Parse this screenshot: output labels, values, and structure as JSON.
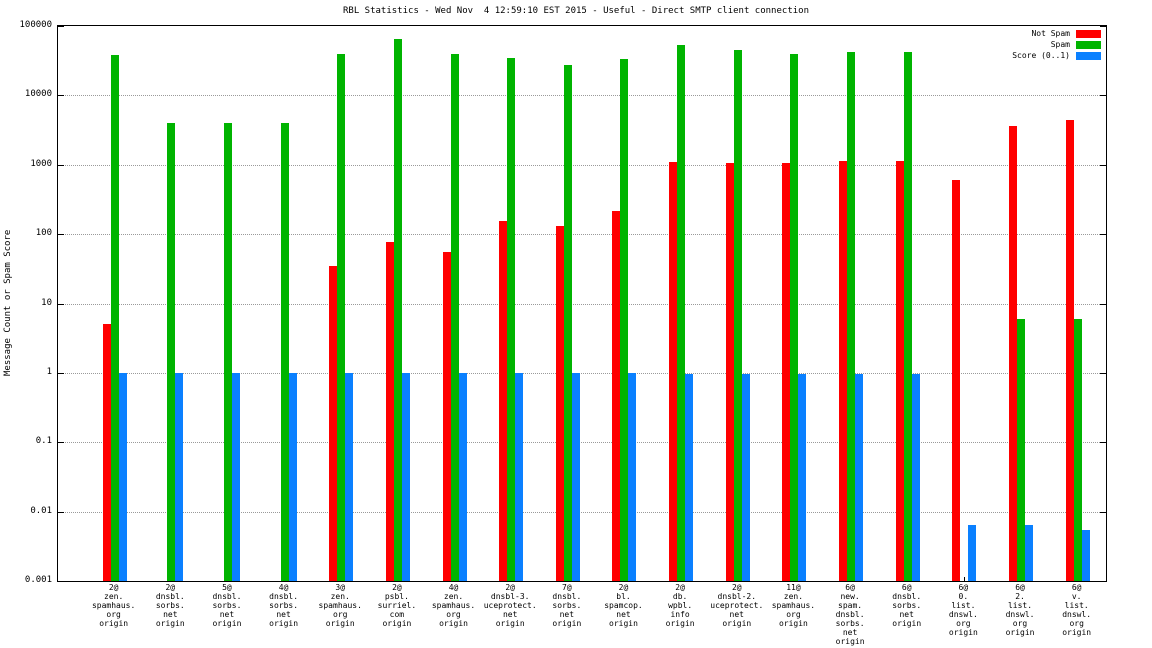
{
  "title": "RBL Statistics - Wed Nov  4 12:59:10 EST 2015 - Useful - Direct SMTP client connection",
  "chart_data": {
    "type": "bar",
    "yscale": "log",
    "grid": true,
    "legend_position": "top-right",
    "ylabel": "Message Count or Spam Score",
    "ylim": [
      0.001,
      100000
    ],
    "yticks": [
      100000,
      10000,
      1000,
      100,
      10,
      1,
      0.1,
      0.01,
      0.001
    ],
    "ytick_labels": [
      "100000",
      "10000",
      "1000",
      "100",
      "10",
      "1",
      "0.1",
      "0.01",
      "0.001"
    ],
    "categories": [
      "2@\nzen.\nspamhaus.\norg\norigin",
      "2@\ndnsbl.\nsorbs.\nnet\norigin",
      "5@\ndnsbl.\nsorbs.\nnet\norigin",
      "4@\ndnsbl.\nsorbs.\nnet\norigin",
      "3@\nzen.\nspamhaus.\norg\norigin",
      "2@\npsbl.\nsurriel.\ncom\norigin",
      "4@\nzen.\nspamhaus.\norg\norigin",
      "2@\ndnsbl-3.\nuceprotect.\nnet\norigin",
      "7@\ndnsbl.\nsorbs.\nnet\norigin",
      "2@\nbl.\nspamcop.\nnet\norigin",
      "2@\ndb.\nwpbl.\ninfo\norigin",
      "2@\ndnsbl-2.\nuceprotect.\nnet\norigin",
      "11@\nzen.\nspamhaus.\norg\norigin",
      "6@\nnew.\nspam.\ndnsbl.\nsorbs.\nnet\norigin",
      "6@\ndnsbl.\nsorbs.\nnet\norigin",
      "6@\n0.\nlist.\ndnswl.\norg\norigin",
      "6@\n2.\nlist.\ndnswl.\norg\norigin",
      "6@\nv.\nlist.\ndnswl.\norg\norigin"
    ],
    "series": [
      {
        "name": "Not Spam",
        "slug": "not-spam",
        "color": "#ff0000",
        "values": [
          5,
          null,
          null,
          null,
          35,
          78,
          55,
          155,
          130,
          215,
          1100,
          1050,
          1050,
          1150,
          1150,
          600,
          3600,
          4400
        ]
      },
      {
        "name": "Spam",
        "slug": "spam",
        "color": "#00b400",
        "values": [
          38000,
          4000,
          4000,
          4000,
          40000,
          64000,
          40000,
          35000,
          27000,
          34000,
          54000,
          45000,
          40000,
          42000,
          42000,
          null,
          6,
          6
        ]
      },
      {
        "name": "Score (0..1)",
        "slug": "score",
        "color": "#0a80ff",
        "values": [
          1,
          1,
          1,
          1,
          1,
          1,
          1,
          1,
          1,
          1,
          0.95,
          0.95,
          0.95,
          0.95,
          0.95,
          0.0065,
          0.0065,
          0.0055
        ]
      }
    ]
  }
}
